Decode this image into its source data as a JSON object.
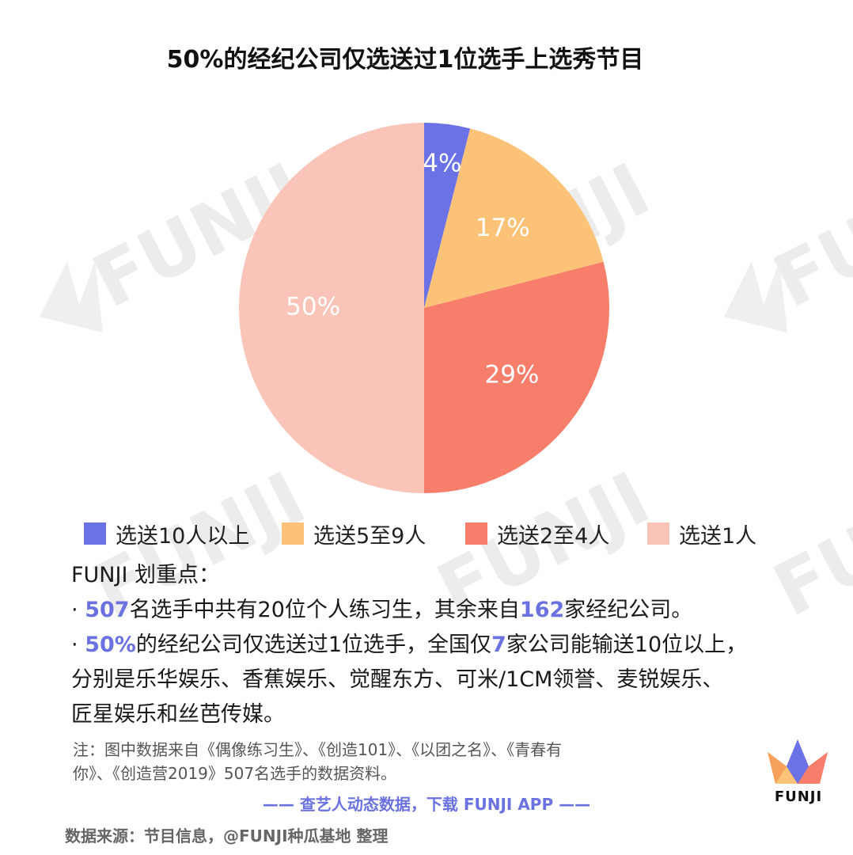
{
  "title": "50%的经纪公司仅选送过1位选手上选秀节目",
  "chart_data": {
    "type": "pie",
    "title": "50%的经纪公司仅选送过1位选手上选秀节目",
    "slices": [
      {
        "label": "选送10人以上",
        "value": 4,
        "display": "4%",
        "color": "#6b72e6"
      },
      {
        "label": "选送5至9人",
        "value": 17,
        "display": "17%",
        "color": "#fcc277"
      },
      {
        "label": "选送2至4人",
        "value": 29,
        "display": "29%",
        "color": "#f87e6c"
      },
      {
        "label": "选送1人",
        "value": 50,
        "display": "50%",
        "color": "#fbc4b8"
      }
    ],
    "legend_position": "bottom"
  },
  "notes": {
    "heading": "FUNJI 划重点：",
    "bullet": "·",
    "line1": {
      "num1": "507",
      "text1": "名选手中共有20位个人练习生，其余来自",
      "num2": "162",
      "text2": "家经纪公司。"
    },
    "line2": {
      "num1": "50%",
      "text1": "的经纪公司仅选送过1位选手，全国仅",
      "num2": "7",
      "text2": "家公司能输送10位以上，"
    },
    "line3": "分别是乐华娱乐、香蕉娱乐、觉醒东方、可米/1CM领誉、麦锐娱乐、",
    "line4": "匠星娱乐和丝芭传媒。"
  },
  "footnote": {
    "line1": "注：图中数据来自《偶像练习生》、《创造101》、《以团之名》、《青春有",
    "line2": "你》、《创造营2019》507名选手的数据资料。"
  },
  "cta": "—— 查艺人动态数据，下载 FUNJI APP ——",
  "source": "数据来源：节目信息，@FUNJI种瓜基地 整理",
  "brand": {
    "name": "FUNJI",
    "watermark": "FUNJI"
  }
}
